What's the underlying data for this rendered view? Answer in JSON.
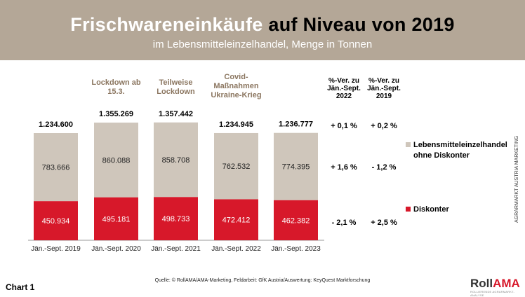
{
  "header": {
    "title_part1": "Frischwareneinkäufe",
    "title_part2": "auf Niveau von 2019",
    "subtitle": "im Lebensmitteleinzelhandel, Menge in Tonnen"
  },
  "chart_data": {
    "type": "bar",
    "stacked": true,
    "categories": [
      "Jän.-Sept. 2019",
      "Jän.-Sept. 2020",
      "Jän.-Sept. 2021",
      "Jän.-Sept. 2022",
      "Jän.-Sept. 2023"
    ],
    "series": [
      {
        "name": "Diskonter",
        "color": "#d7182a",
        "values": [
          450934,
          495181,
          498733,
          472412,
          462382
        ],
        "labels": [
          "450.934",
          "495.181",
          "498.733",
          "472.412",
          "462.382"
        ]
      },
      {
        "name": "Lebensmitteleinzelhandel ohne Diskonter",
        "color": "#cfc6bb",
        "values": [
          783666,
          860088,
          858708,
          762532,
          774395
        ],
        "labels": [
          "783.666",
          "860.088",
          "858.708",
          "762.532",
          "774.395"
        ]
      }
    ],
    "totals": [
      "1.234.600",
      "1.355.269",
      "1.357.442",
      "1.234.945",
      "1.236.777"
    ],
    "annotations": [
      "",
      "Lockdown ab 15.3.",
      "Teilweise Lockdown",
      "Covid-Maßnahmen Ukraine-Krieg",
      ""
    ],
    "change_columns": [
      {
        "header": "%-Ver. zu Jän.-Sept. 2022",
        "total": "+ 0,1 %",
        "lh": "+ 1,6 %",
        "disk": "- 2,1 %"
      },
      {
        "header": "%-Ver. zu Jän.-Sept. 2019",
        "total": "+ 0,2 %",
        "lh": "- 1,2 %",
        "disk": "+ 2,5 %"
      }
    ],
    "legend_placement": "right"
  },
  "footer": {
    "chart_label": "Chart 1",
    "source": "Quelle: © RollAMA/AMA-Marketing, Feldarbeit: GfK Austria/Auswertung: KeyQuest Marktforschung",
    "side_text": "AGRARMARKT AUSTRIA MARKETING",
    "logo_a": "Roll",
    "logo_b": "AMA",
    "logo_sub": "ROLLIERENDE AGRARMARKT-ANALYSE"
  }
}
